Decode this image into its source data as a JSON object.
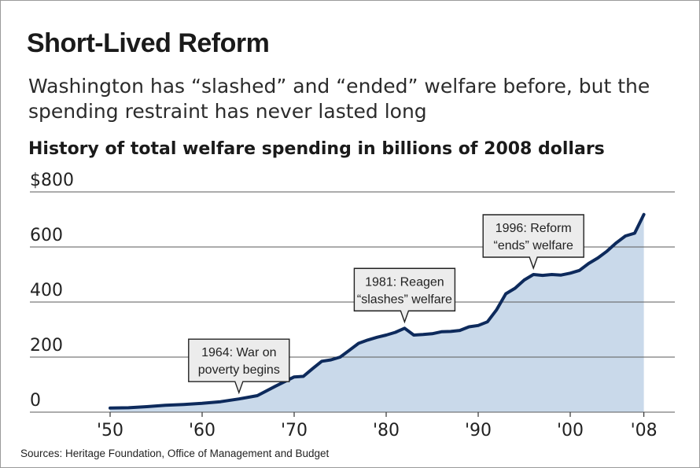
{
  "title": "Short-Lived Reform",
  "subtitle": "Washington has “slashed” and “ended” welfare before, but the spending restraint has never lasted long",
  "source": "Sources: Heritage Foundation, Office of Management and Budget",
  "colors": {
    "area_fill": "#c9d9ea",
    "line": "#0d2a5c",
    "gridline": "#5a5a5a",
    "annotation_fill": "#ececec",
    "annotation_border": "#222222"
  },
  "chart_data": {
    "type": "area",
    "title": "History of total welfare spending in billions of 2008 dollars",
    "y_unit_label": "$800",
    "xlim": [
      1950,
      2008
    ],
    "ylim": [
      0,
      800
    ],
    "grid": "horizontal",
    "y_ticks": [
      {
        "value": 0,
        "label": "0"
      },
      {
        "value": 200,
        "label": "200"
      },
      {
        "value": 400,
        "label": "400"
      },
      {
        "value": 600,
        "label": "600"
      },
      {
        "value": 800,
        "label": "$800"
      }
    ],
    "x_ticks": [
      {
        "value": 1950,
        "label": "'50"
      },
      {
        "value": 1960,
        "label": "'60"
      },
      {
        "value": 1970,
        "label": "'70"
      },
      {
        "value": 1980,
        "label": "'80"
      },
      {
        "value": 1990,
        "label": "'90"
      },
      {
        "value": 2000,
        "label": "'00"
      },
      {
        "value": 2008,
        "label": "'08"
      }
    ],
    "series": [
      {
        "x": [
          1950,
          1952,
          1954,
          1956,
          1958,
          1960,
          1962,
          1964,
          1966,
          1968,
          1970,
          1971,
          1972,
          1973,
          1974,
          1975,
          1976,
          1977,
          1978,
          1979,
          1980,
          1981,
          1982,
          1983,
          1984,
          1985,
          1986,
          1987,
          1988,
          1989,
          1990,
          1991,
          1992,
          1993,
          1994,
          1995,
          1996,
          1997,
          1998,
          1999,
          2000,
          2001,
          2002,
          2003,
          2004,
          2005,
          2006,
          2007,
          2008
        ],
        "y": [
          15,
          16,
          20,
          25,
          28,
          32,
          38,
          48,
          60,
          95,
          128,
          130,
          158,
          185,
          190,
          200,
          225,
          250,
          262,
          272,
          280,
          290,
          305,
          280,
          282,
          285,
          292,
          293,
          297,
          310,
          315,
          328,
          372,
          430,
          450,
          480,
          500,
          497,
          500,
          498,
          505,
          515,
          540,
          560,
          585,
          615,
          640,
          650,
          718
        ]
      }
    ],
    "annotations": [
      {
        "lines": [
          "1964: War on",
          "poverty begins"
        ],
        "x": 1964,
        "y": 48
      },
      {
        "lines": [
          "1981: Reagen",
          "“slashes” welfare"
        ],
        "x": 1982,
        "y": 305
      },
      {
        "lines": [
          "1996: Reform",
          "“ends” welfare"
        ],
        "x": 1996,
        "y": 500
      }
    ]
  }
}
